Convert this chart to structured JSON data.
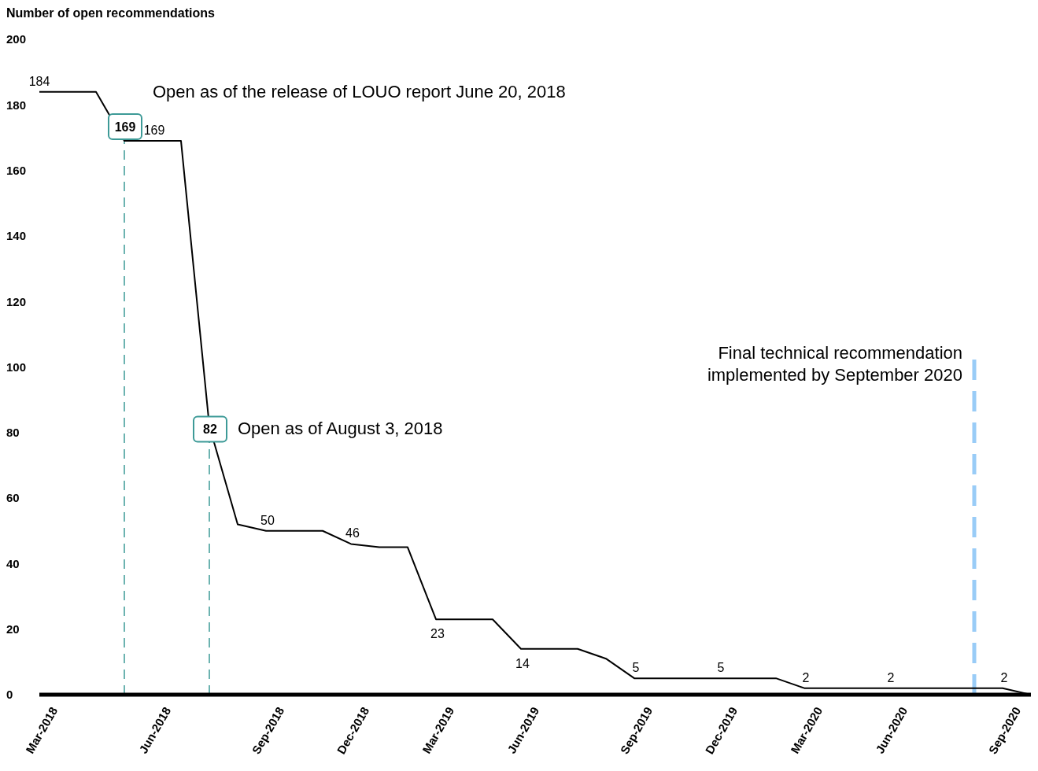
{
  "chart_data": {
    "type": "line",
    "ylabel": "Number of open recommendations",
    "categories": [
      "Mar-2018",
      null,
      null,
      null,
      "Jun-2018",
      null,
      null,
      null,
      "Sep-2018",
      null,
      null,
      "Dec-2018",
      null,
      null,
      "Mar-2019",
      null,
      null,
      "Jun-2019",
      null,
      null,
      null,
      "Sep-2019",
      null,
      null,
      "Dec-2019",
      null,
      null,
      "Mar-2020",
      null,
      null,
      "Jun-2020",
      null,
      null,
      null,
      "Sep-2020",
      null
    ],
    "series": [
      {
        "color": "#000000",
        "values": [
          184,
          184,
          184,
          169,
          169,
          169,
          82,
          52,
          50,
          50,
          50,
          46,
          45,
          45,
          23,
          23,
          23,
          14,
          14,
          14,
          11,
          5,
          5,
          5,
          5,
          5,
          5,
          2,
          2,
          2,
          2,
          2,
          2,
          2,
          2,
          0
        ],
        "value_labels": [
          "184",
          null,
          null,
          "169",
          "169",
          null,
          "82",
          null,
          "50",
          null,
          null,
          "46",
          null,
          null,
          "23",
          null,
          null,
          "14",
          null,
          null,
          null,
          "5",
          null,
          null,
          "5",
          null,
          null,
          "2",
          null,
          null,
          "2",
          null,
          null,
          null,
          "2",
          null
        ]
      }
    ],
    "ylim": [
      0,
      200
    ],
    "yticks": [
      0,
      20,
      40,
      60,
      80,
      100,
      120,
      140,
      160,
      180,
      200
    ],
    "marker": "none",
    "line_style": "solid",
    "annotations": [
      "Open as of the release of LOUO report June 20, 2018",
      "Open as of August 3, 2018",
      "Final technical recommendation implemented by September 2020"
    ]
  }
}
